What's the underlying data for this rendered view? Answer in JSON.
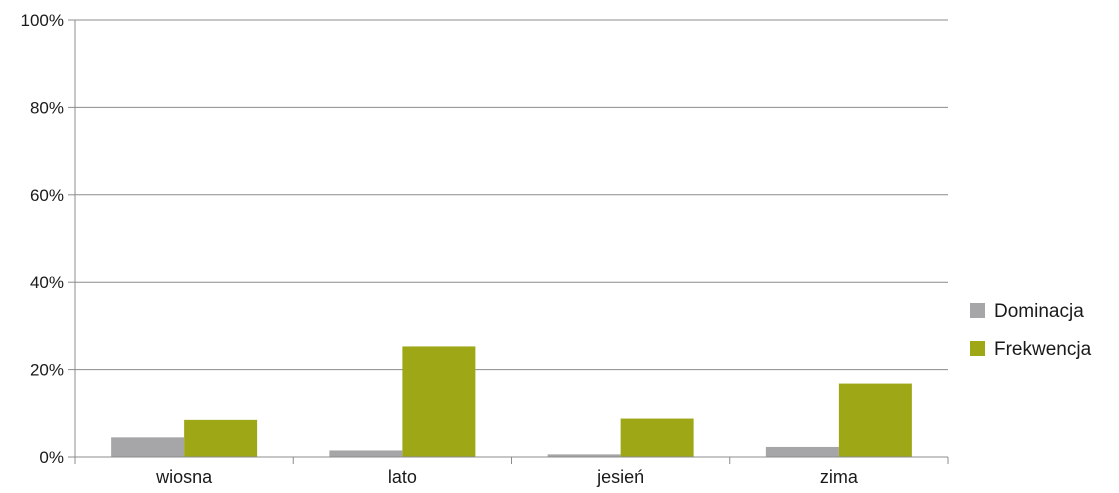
{
  "chart_data": {
    "type": "bar",
    "categories": [
      "wiosna",
      "lato",
      "jesień",
      "zima"
    ],
    "series": [
      {
        "name": "Dominacja",
        "values": [
          4.5,
          1.5,
          0.6,
          2.3
        ],
        "color": "#a6a6a8"
      },
      {
        "name": "Frekwencja",
        "values": [
          8.5,
          25.3,
          8.8,
          16.8
        ],
        "color": "#9ea817"
      }
    ],
    "ylim": [
      0,
      100
    ],
    "yticks": [
      "0%",
      "20%",
      "40%",
      "60%",
      "80%",
      "100%"
    ],
    "ytick_values": [
      0,
      20,
      40,
      60,
      80,
      100
    ],
    "grid": true,
    "legend_position": "right"
  }
}
